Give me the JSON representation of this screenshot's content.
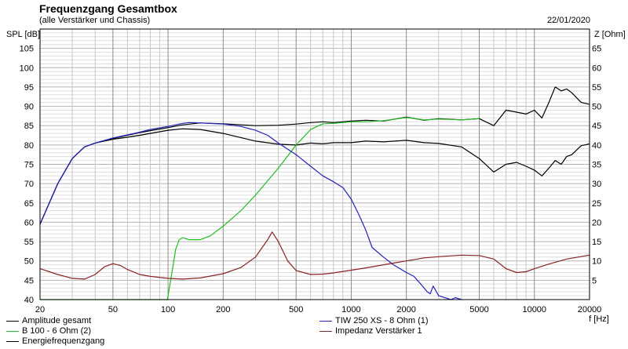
{
  "header": {
    "title": "Frequenzgang Gesamtbox",
    "subtitle": "(alle Verstärker und Chassis)",
    "date": "22/01/2020"
  },
  "chart_data": {
    "type": "line",
    "title": "Frequenzgang Gesamtbox",
    "subtitle": "(alle Verstärker und Chassis)",
    "ylabel": "SPL [dB]",
    "y2label": "Z [Ohm]",
    "xlabel": "f [Hz]",
    "x_scale": "log",
    "xlim": [
      20,
      20000
    ],
    "ylim": [
      40,
      110
    ],
    "y2lim": [
      0,
      70
    ],
    "x_ticks": [
      20,
      50,
      100,
      200,
      500,
      1000,
      2000,
      5000,
      10000,
      20000
    ],
    "x_tick_labels": [
      "20",
      "50",
      "100",
      "200",
      "500",
      "1000",
      "2000",
      "5000",
      "10000",
      "20000"
    ],
    "y_ticks": [
      40,
      45,
      50,
      55,
      60,
      65,
      70,
      75,
      80,
      85,
      90,
      95,
      100,
      105
    ],
    "y2_ticks": [
      5,
      10,
      15,
      20,
      25,
      30,
      35,
      40,
      45,
      50,
      55,
      60,
      65
    ],
    "grid": true,
    "legend_position": "bottom",
    "series": [
      {
        "name": "Amplitude gesamt",
        "color": "#000000",
        "axis": "left",
        "x": [
          20,
          25,
          30,
          35,
          40,
          50,
          60,
          70,
          80,
          100,
          120,
          150,
          200,
          300,
          400,
          500,
          600,
          700,
          800,
          1000,
          1200,
          1500,
          2000,
          2500,
          3000,
          4000,
          5000,
          6000,
          7000,
          8000,
          9000,
          10000,
          11000,
          12000,
          13000,
          14000,
          15000,
          16000,
          18000,
          20000
        ],
        "y": [
          59.5,
          70,
          76.5,
          79.5,
          80.5,
          81.7,
          82.5,
          83.2,
          83.7,
          84.5,
          85.2,
          85.7,
          85.5,
          85.0,
          85.1,
          85.4,
          85.8,
          86.0,
          85.8,
          86.2,
          86.4,
          86.2,
          87.2,
          86.4,
          86.8,
          86.5,
          86.8,
          85.0,
          89.0,
          88.5,
          88.0,
          89.0,
          87.0,
          91.0,
          95.0,
          94.0,
          94.5,
          93.5,
          91.0,
          90.5
        ]
      },
      {
        "name": "Energiefrequenzgang",
        "color": "#000000",
        "axis": "left",
        "x": [
          20,
          25,
          30,
          35,
          40,
          50,
          60,
          70,
          80,
          100,
          120,
          150,
          200,
          300,
          400,
          500,
          600,
          700,
          800,
          1000,
          1200,
          1500,
          2000,
          2500,
          3000,
          4000,
          5000,
          6000,
          7000,
          8000,
          9000,
          10000,
          11000,
          12000,
          13000,
          14000,
          15000,
          16000,
          18000,
          20000
        ],
        "y": [
          59.5,
          70,
          76.5,
          79.5,
          80.5,
          81.5,
          82.0,
          82.5,
          83.0,
          83.8,
          84.2,
          84.0,
          83.0,
          81.0,
          80.2,
          80.0,
          80.5,
          80.3,
          80.6,
          80.6,
          81.0,
          80.8,
          81.2,
          80.6,
          80.4,
          79.5,
          76.5,
          73.0,
          75.0,
          75.5,
          74.5,
          73.5,
          72.0,
          74.0,
          76.0,
          75.0,
          77.0,
          77.5,
          79.8,
          80.3
        ]
      },
      {
        "name": "B 100 - 6 Ohm (2)",
        "color": "#22bb22",
        "axis": "left",
        "x": [
          20,
          50,
          99,
          100,
          105,
          110,
          115,
          120,
          130,
          150,
          170,
          200,
          250,
          300,
          400,
          500,
          600,
          700,
          800,
          1000,
          1200,
          1500,
          2000,
          2500,
          3000,
          4000,
          5000
        ],
        "y": [
          40,
          40,
          40,
          41,
          47,
          53,
          55.5,
          56,
          55.5,
          55.5,
          56.5,
          59,
          63,
          67,
          74,
          80,
          84,
          85.5,
          85.6,
          86.0,
          86.0,
          86.3,
          87.1,
          86.5,
          86.7,
          86.5,
          86.8
        ]
      },
      {
        "name": "TIW 250 XS - 8 Ohm (1)",
        "color": "#2222bb",
        "axis": "left",
        "x": [
          20,
          25,
          30,
          35,
          40,
          50,
          60,
          70,
          80,
          100,
          120,
          130,
          150,
          200,
          250,
          300,
          350,
          400,
          500,
          600,
          700,
          800,
          900,
          1000,
          1100,
          1200,
          1300,
          1500,
          1700,
          2000,
          2200,
          2400,
          2600,
          2700,
          2800,
          3000,
          3500,
          3700,
          4000
        ],
        "y": [
          59.5,
          70,
          76.5,
          79.5,
          80.5,
          81.8,
          82.6,
          83.3,
          84.0,
          84.8,
          85.6,
          85.8,
          85.7,
          85.4,
          84.8,
          83.8,
          82.5,
          80.5,
          77.5,
          74.5,
          72.0,
          70.5,
          69.0,
          66.0,
          62.0,
          58.0,
          53.5,
          51.0,
          49.0,
          47.0,
          46.0,
          44.0,
          42.0,
          41.5,
          43.5,
          41.0,
          40.0,
          40.5,
          40.0
        ]
      },
      {
        "name": "Impedanz Verstärker 1",
        "color": "#882222",
        "axis": "right",
        "x": [
          20,
          25,
          30,
          35,
          40,
          45,
          50,
          55,
          60,
          70,
          80,
          100,
          120,
          150,
          200,
          250,
          300,
          350,
          370,
          400,
          450,
          500,
          600,
          700,
          800,
          1000,
          1200,
          1500,
          2000,
          2500,
          3000,
          4000,
          5000,
          6000,
          7000,
          8000,
          9000,
          10000,
          12000,
          15000,
          20000
        ],
        "y": [
          8,
          6.5,
          5.5,
          5.3,
          6.5,
          8.5,
          9.3,
          8.8,
          7.8,
          6.5,
          6.0,
          5.5,
          5.3,
          5.6,
          6.7,
          8.3,
          11,
          15.5,
          17.5,
          15.0,
          10.0,
          7.5,
          6.5,
          6.6,
          6.9,
          7.6,
          8.2,
          9.0,
          10.0,
          10.8,
          11.1,
          11.5,
          11.4,
          10.5,
          8.0,
          7.0,
          7.2,
          8.0,
          9.2,
          10.5,
          11.5
        ]
      }
    ]
  },
  "legend": {
    "items": [
      {
        "label": "Amplitude gesamt",
        "color": "#000000"
      },
      {
        "label": "B 100 - 6 Ohm (2)",
        "color": "#22bb22"
      },
      {
        "label": "Energiefrequenzgang",
        "color": "#000000"
      },
      {
        "label": "TIW 250 XS - 8 Ohm (1)",
        "color": "#2222bb"
      },
      {
        "label": "Impedanz Verstärker 1",
        "color": "#882222"
      }
    ]
  }
}
